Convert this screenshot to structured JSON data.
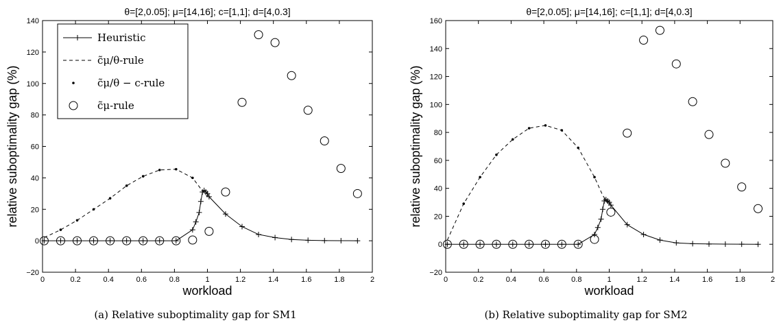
{
  "chart_data": [
    {
      "type": "line",
      "title": "θ=[2,0.05]; μ=[14,16]; c=[1,1]; d=[4,0.3]",
      "xlabel": "workload",
      "ylabel": "relative suboptimality gap (%)",
      "xlim": [
        0,
        2
      ],
      "ylim": [
        -20,
        140
      ],
      "xticks": [
        "0",
        "0.2",
        "0.4",
        "0.6",
        "0.8",
        "1",
        "1.2",
        "1.4",
        "1.6",
        "1.8",
        "2"
      ],
      "yticks": [
        "−20",
        "0",
        "20",
        "40",
        "60",
        "80",
        "100",
        "120",
        "140"
      ],
      "legend_position": "top-left",
      "caption": "(a) Relative suboptimality gap for SM1",
      "series": [
        {
          "name": "Heuristic",
          "style": "solid-plus",
          "x": [
            0.01,
            0.11,
            0.21,
            0.31,
            0.41,
            0.51,
            0.61,
            0.71,
            0.81,
            0.91,
            0.93,
            0.95,
            0.96,
            0.97,
            0.98,
            0.99,
            1.0,
            1.01,
            1.11,
            1.21,
            1.31,
            1.41,
            1.51,
            1.61,
            1.71,
            1.81,
            1.91
          ],
          "y": [
            0,
            0,
            0,
            0,
            0,
            0,
            0,
            0,
            0,
            7,
            12,
            18,
            25,
            31,
            32,
            31,
            30,
            28,
            17,
            9,
            4,
            2,
            0.8,
            0.3,
            0.1,
            0.05,
            0
          ]
        },
        {
          "name": "c̃μ/θ-rule",
          "style": "dashed",
          "x": [
            0.01,
            0.11,
            0.21,
            0.31,
            0.41,
            0.51,
            0.61,
            0.71,
            0.81,
            0.91,
            0.96,
            1.0
          ],
          "y": [
            2,
            7,
            13,
            20,
            27,
            35,
            41,
            45,
            45.5,
            40,
            33,
            28
          ]
        },
        {
          "name": "c̃μ/θ − c-rule",
          "style": "dots",
          "x": [
            0.11,
            0.21,
            0.31,
            0.41,
            0.51,
            0.61,
            0.71,
            0.81,
            0.91
          ],
          "y": [
            7,
            13,
            20,
            27,
            35,
            41,
            45,
            45.5,
            40
          ]
        },
        {
          "name": "c̃μ-rule",
          "style": "circles",
          "x": [
            0.01,
            0.11,
            0.21,
            0.31,
            0.41,
            0.51,
            0.61,
            0.71,
            0.81,
            0.91,
            1.01,
            1.11,
            1.21,
            1.31,
            1.41,
            1.51,
            1.61,
            1.71,
            1.81,
            1.91
          ],
          "y": [
            0,
            0,
            0,
            0,
            0,
            0,
            0,
            0,
            0,
            0.5,
            6,
            31,
            88,
            131,
            126,
            105,
            83,
            63.5,
            46,
            30
          ]
        }
      ]
    },
    {
      "type": "line",
      "title": "θ=[2,0.05]; μ=[14,16]; c=[1,1]; d=[4,0.3]",
      "xlabel": "workload",
      "ylabel": "relative suboptimality gap (%)",
      "xlim": [
        0,
        2
      ],
      "ylim": [
        -20,
        160
      ],
      "xticks": [
        "0",
        "0.2",
        "0.4",
        "0.6",
        "0.8",
        "1",
        "1.2",
        "1.4",
        "1.6",
        "1.8",
        "2"
      ],
      "yticks": [
        "−20",
        "0",
        "20",
        "40",
        "60",
        "80",
        "100",
        "120",
        "140",
        "160"
      ],
      "caption": "(b) Relative suboptimality gap for SM2",
      "series": [
        {
          "name": "Heuristic",
          "style": "solid-plus",
          "x": [
            0.01,
            0.11,
            0.21,
            0.31,
            0.41,
            0.51,
            0.61,
            0.71,
            0.81,
            0.91,
            0.93,
            0.95,
            0.96,
            0.97,
            0.98,
            0.99,
            1.0,
            1.01,
            1.11,
            1.21,
            1.31,
            1.41,
            1.51,
            1.61,
            1.71,
            1.81,
            1.91
          ],
          "y": [
            0,
            0,
            0,
            0,
            0,
            0,
            0,
            0,
            0,
            7,
            12,
            18,
            25,
            31,
            32,
            31,
            30,
            28,
            14,
            7,
            3,
            1,
            0.4,
            0.2,
            0.1,
            0.05,
            0
          ]
        },
        {
          "name": "c̃μ/θ-rule",
          "style": "dashed",
          "x": [
            0.01,
            0.11,
            0.21,
            0.31,
            0.41,
            0.51,
            0.61,
            0.71,
            0.81,
            0.91,
            0.96,
            1.0
          ],
          "y": [
            3,
            29,
            48,
            64,
            75,
            83,
            85,
            81.5,
            69,
            48,
            35,
            28
          ]
        },
        {
          "name": "c̃μ/θ − c-rule",
          "style": "dots",
          "x": [
            0.11,
            0.21,
            0.31,
            0.41,
            0.51,
            0.61,
            0.71,
            0.81,
            0.91
          ],
          "y": [
            29,
            48,
            64,
            75,
            83,
            85,
            81.5,
            69,
            48
          ]
        },
        {
          "name": "c̃μ-rule",
          "style": "circles",
          "x": [
            0.01,
            0.11,
            0.21,
            0.31,
            0.41,
            0.51,
            0.61,
            0.71,
            0.81,
            0.91,
            1.01,
            1.11,
            1.21,
            1.31,
            1.41,
            1.51,
            1.61,
            1.71,
            1.81,
            1.91
          ],
          "y": [
            0,
            0,
            0,
            0,
            0,
            0,
            0,
            0,
            0,
            3.5,
            23,
            79.5,
            146,
            153,
            129,
            102,
            78.5,
            58,
            41,
            25.5
          ]
        }
      ]
    }
  ]
}
